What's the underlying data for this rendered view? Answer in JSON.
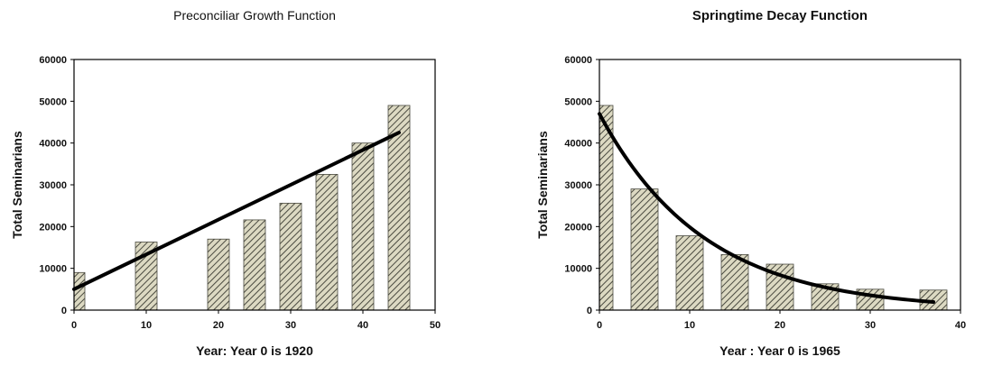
{
  "colors": {
    "bar_fill": "#dcd9c2",
    "bar_hatch": "#4a4a40",
    "fit_line": "#000000",
    "axis": "#000000"
  },
  "chart_data": [
    {
      "type": "bar",
      "title": "Preconciliar Growth Function",
      "xlabel": "Year: Year 0 is 1920",
      "ylabel": "Total Seminarians",
      "xlim": [
        0,
        50
      ],
      "ylim": [
        0,
        60000
      ],
      "xticks": [
        0,
        10,
        20,
        30,
        40,
        50
      ],
      "yticks": [
        0,
        10000,
        20000,
        30000,
        40000,
        50000,
        60000
      ],
      "x": [
        0,
        10,
        20,
        25,
        30,
        35,
        40,
        45
      ],
      "values": [
        9000,
        16300,
        17000,
        21600,
        25600,
        32500,
        40000,
        49000
      ],
      "fit": {
        "type": "linear",
        "x": [
          0,
          45
        ],
        "y": [
          5000,
          42500
        ]
      },
      "grid": false,
      "legend": "none"
    },
    {
      "type": "bar",
      "title": "Springtime Decay Function",
      "xlabel": "Year : Year 0 is 1965",
      "ylabel": "Total Seminarians",
      "xlim": [
        0,
        40
      ],
      "ylim": [
        0,
        60000
      ],
      "xticks": [
        0,
        10,
        20,
        30,
        40
      ],
      "yticks": [
        0,
        10000,
        20000,
        30000,
        40000,
        50000,
        60000
      ],
      "x": [
        0,
        5,
        10,
        15,
        20,
        25,
        30,
        37
      ],
      "values": [
        49000,
        29000,
        17800,
        13300,
        11000,
        6300,
        5000,
        4800
      ],
      "fit": {
        "type": "exponential",
        "a": 47000,
        "k": 0.0861,
        "x_range": [
          0,
          37
        ]
      },
      "grid": false,
      "legend": "none"
    }
  ]
}
